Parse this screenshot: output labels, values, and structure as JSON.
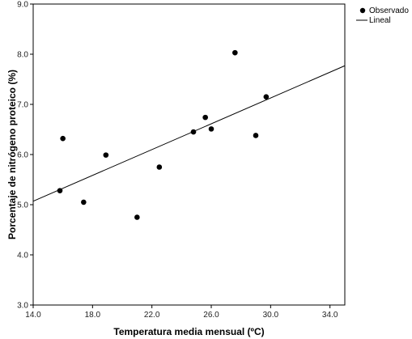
{
  "chart_data": {
    "type": "scatter",
    "title": "",
    "xlabel": "Temperatura media mensual (ºC)",
    "ylabel": "Porcentaje de nitrógeno proteico (%)",
    "xlim": [
      14.0,
      35.0
    ],
    "ylim": [
      3.0,
      9.0
    ],
    "xticks": [
      "14.0",
      "18.0",
      "22.0",
      "26.0",
      "30.0",
      "34.0"
    ],
    "yticks": [
      "3.0",
      "4.0",
      "5.0",
      "6.0",
      "7.0",
      "8.0",
      "9.0"
    ],
    "grid": false,
    "legend_position": "top-right",
    "series": [
      {
        "name": "Observado",
        "kind": "points",
        "color": "#000000",
        "points": [
          {
            "x": 15.8,
            "y": 5.28
          },
          {
            "x": 16.0,
            "y": 6.32
          },
          {
            "x": 17.4,
            "y": 5.05
          },
          {
            "x": 18.9,
            "y": 5.99
          },
          {
            "x": 21.0,
            "y": 4.75
          },
          {
            "x": 22.5,
            "y": 5.75
          },
          {
            "x": 24.8,
            "y": 6.45
          },
          {
            "x": 25.6,
            "y": 6.74
          },
          {
            "x": 26.0,
            "y": 6.51
          },
          {
            "x": 27.6,
            "y": 8.03
          },
          {
            "x": 29.0,
            "y": 6.38
          },
          {
            "x": 29.7,
            "y": 7.15
          }
        ]
      },
      {
        "name": "Lineal",
        "kind": "line",
        "color": "#000000",
        "points": [
          {
            "x": 14.0,
            "y": 5.07
          },
          {
            "x": 35.0,
            "y": 7.77
          }
        ]
      }
    ]
  }
}
